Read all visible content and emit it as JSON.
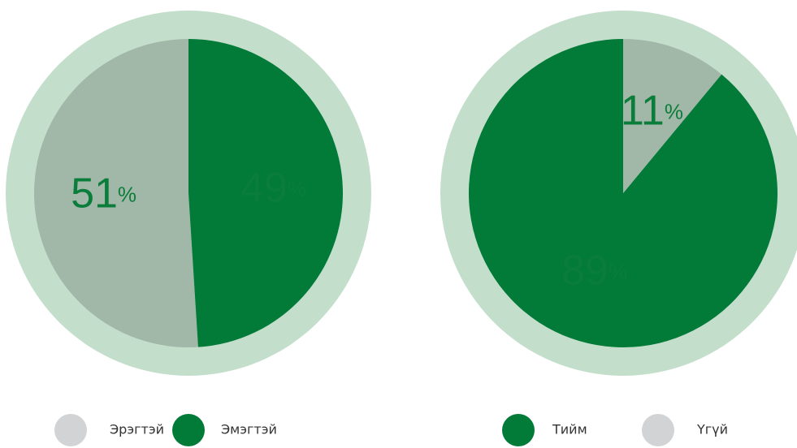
{
  "chart_data": [
    {
      "type": "pie",
      "categories": [
        "Эрэгтэй",
        "Эмэгтэй"
      ],
      "values": [
        51,
        49
      ],
      "value_labels": [
        "51%",
        "49%"
      ],
      "colors": [
        "#a1b7a8",
        "#027a38"
      ],
      "legend_colors": [
        "#d1d3d4",
        "#027a38"
      ],
      "ring_color": "#c3dfcb"
    },
    {
      "type": "pie",
      "categories": [
        "Тийм",
        "Үгүй"
      ],
      "values": [
        89,
        11
      ],
      "value_labels": [
        "89%",
        "11%"
      ],
      "colors": [
        "#027a38",
        "#a1b7a8"
      ],
      "legend_colors": [
        "#027a38",
        "#d1d3d4"
      ],
      "ring_color": "#c3dfcb"
    }
  ]
}
